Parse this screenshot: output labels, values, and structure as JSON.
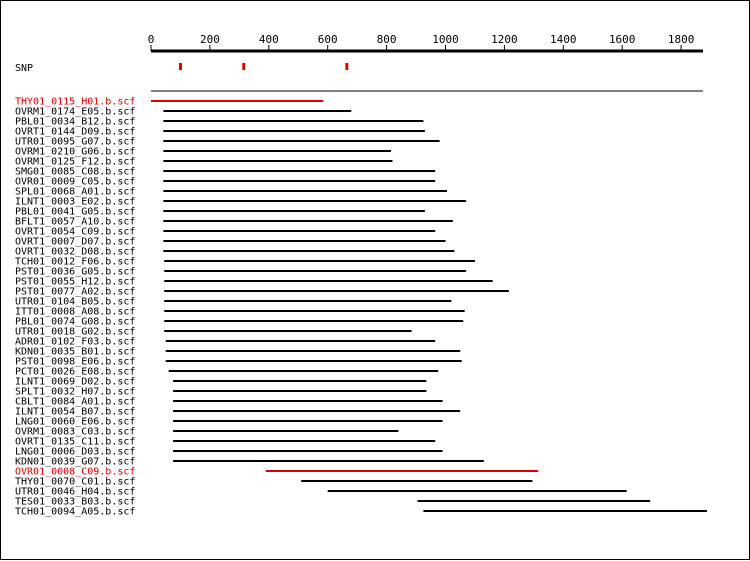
{
  "axis": {
    "min": 0,
    "max": 1860,
    "ticks": [
      0,
      200,
      400,
      600,
      800,
      1000,
      1200,
      1400,
      1600,
      1800
    ]
  },
  "snp": {
    "label": "SNP",
    "positions": [
      100,
      315,
      665
    ],
    "color": "#dd0000"
  },
  "colors": {
    "highlight": "#dd0000",
    "normal": "#000000"
  },
  "reads": [
    {
      "name": "THY01_0115_H01.b.scf",
      "start": 0,
      "end": 585,
      "highlight": true
    },
    {
      "name": "OVRM1_0174_E05.b.scf",
      "start": 42,
      "end": 680,
      "highlight": false
    },
    {
      "name": "PBL01_0034_B12.b.scf",
      "start": 42,
      "end": 925,
      "highlight": false
    },
    {
      "name": "OVRT1_0144_D09.b.scf",
      "start": 42,
      "end": 930,
      "highlight": false
    },
    {
      "name": "UTR01_0095_G07.b.scf",
      "start": 42,
      "end": 980,
      "highlight": false
    },
    {
      "name": "OVRM1_0210_G06.b.scf",
      "start": 42,
      "end": 815,
      "highlight": false
    },
    {
      "name": "OVRM1_0125_F12.b.scf",
      "start": 42,
      "end": 820,
      "highlight": false
    },
    {
      "name": "SMG01_0085_C08.b.scf",
      "start": 42,
      "end": 965,
      "highlight": false
    },
    {
      "name": "OVR01_0009_C05.b.scf",
      "start": 42,
      "end": 965,
      "highlight": false
    },
    {
      "name": "SPL01_0068_A01.b.scf",
      "start": 42,
      "end": 1005,
      "highlight": false
    },
    {
      "name": "ILNT1_0003_E02.b.scf",
      "start": 42,
      "end": 1070,
      "highlight": false
    },
    {
      "name": "PBL01_0041_G05.b.scf",
      "start": 42,
      "end": 930,
      "highlight": false
    },
    {
      "name": "BFLT1_0057_A10.b.scf",
      "start": 42,
      "end": 1025,
      "highlight": false
    },
    {
      "name": "OVRT1_0054_C09.b.scf",
      "start": 42,
      "end": 965,
      "highlight": false
    },
    {
      "name": "OVRT1_0007_D07.b.scf",
      "start": 42,
      "end": 1000,
      "highlight": false
    },
    {
      "name": "OVRT1_0032_D08.b.scf",
      "start": 42,
      "end": 1030,
      "highlight": false
    },
    {
      "name": "TCH01_0012_F06.b.scf",
      "start": 45,
      "end": 1100,
      "highlight": false
    },
    {
      "name": "PST01_0036_G05.b.scf",
      "start": 45,
      "end": 1070,
      "highlight": false
    },
    {
      "name": "PST01_0055_H12.b.scf",
      "start": 45,
      "end": 1160,
      "highlight": false
    },
    {
      "name": "PST01_0077_A02.b.scf",
      "start": 45,
      "end": 1215,
      "highlight": false
    },
    {
      "name": "UTR01_0104_B05.b.scf",
      "start": 45,
      "end": 1020,
      "highlight": false
    },
    {
      "name": "ITT01_0008_A08.b.scf",
      "start": 45,
      "end": 1065,
      "highlight": false
    },
    {
      "name": "PBL01_0074_G08.b.scf",
      "start": 45,
      "end": 1060,
      "highlight": false
    },
    {
      "name": "UTR01_0018_G02.b.scf",
      "start": 45,
      "end": 885,
      "highlight": false
    },
    {
      "name": "ADR01_0102_F03.b.scf",
      "start": 50,
      "end": 965,
      "highlight": false
    },
    {
      "name": "KDN01_0035_B01.b.scf",
      "start": 50,
      "end": 1050,
      "highlight": false
    },
    {
      "name": "PST01_0098_E06.b.scf",
      "start": 50,
      "end": 1055,
      "highlight": false
    },
    {
      "name": "PCT01_0026_E08.b.scf",
      "start": 60,
      "end": 975,
      "highlight": false
    },
    {
      "name": "ILNT1_0069_D02.b.scf",
      "start": 75,
      "end": 935,
      "highlight": false
    },
    {
      "name": "SPLT1_0032_H07.b.scf",
      "start": 75,
      "end": 935,
      "highlight": false
    },
    {
      "name": "CBLT1_0084_A01.b.scf",
      "start": 75,
      "end": 990,
      "highlight": false
    },
    {
      "name": "ILNT1_0054_B07.b.scf",
      "start": 75,
      "end": 1050,
      "highlight": false
    },
    {
      "name": "LNG01_0060_E06.b.scf",
      "start": 75,
      "end": 990,
      "highlight": false
    },
    {
      "name": "OVRM1_0083_C03.b.scf",
      "start": 75,
      "end": 840,
      "highlight": false
    },
    {
      "name": "OVRT1_0135_C11.b.scf",
      "start": 75,
      "end": 965,
      "highlight": false
    },
    {
      "name": "LNG01_0006_D03.b.scf",
      "start": 75,
      "end": 990,
      "highlight": false
    },
    {
      "name": "KDN01_0039_G07.b.scf",
      "start": 75,
      "end": 1130,
      "highlight": false
    },
    {
      "name": "OVR01_0008_C09.b.scf",
      "start": 390,
      "end": 1315,
      "highlight": true
    },
    {
      "name": "THY01_0070_C01.b.scf",
      "start": 510,
      "end": 1295,
      "highlight": false
    },
    {
      "name": "UTR01_0046_H04.b.scf",
      "start": 600,
      "end": 1615,
      "highlight": false
    },
    {
      "name": "TES01_0033_B03.b.scf",
      "start": 905,
      "end": 1695,
      "highlight": false
    },
    {
      "name": "TCH01_0094_A05.b.scf",
      "start": 925,
      "end": 1890,
      "highlight": false
    }
  ]
}
